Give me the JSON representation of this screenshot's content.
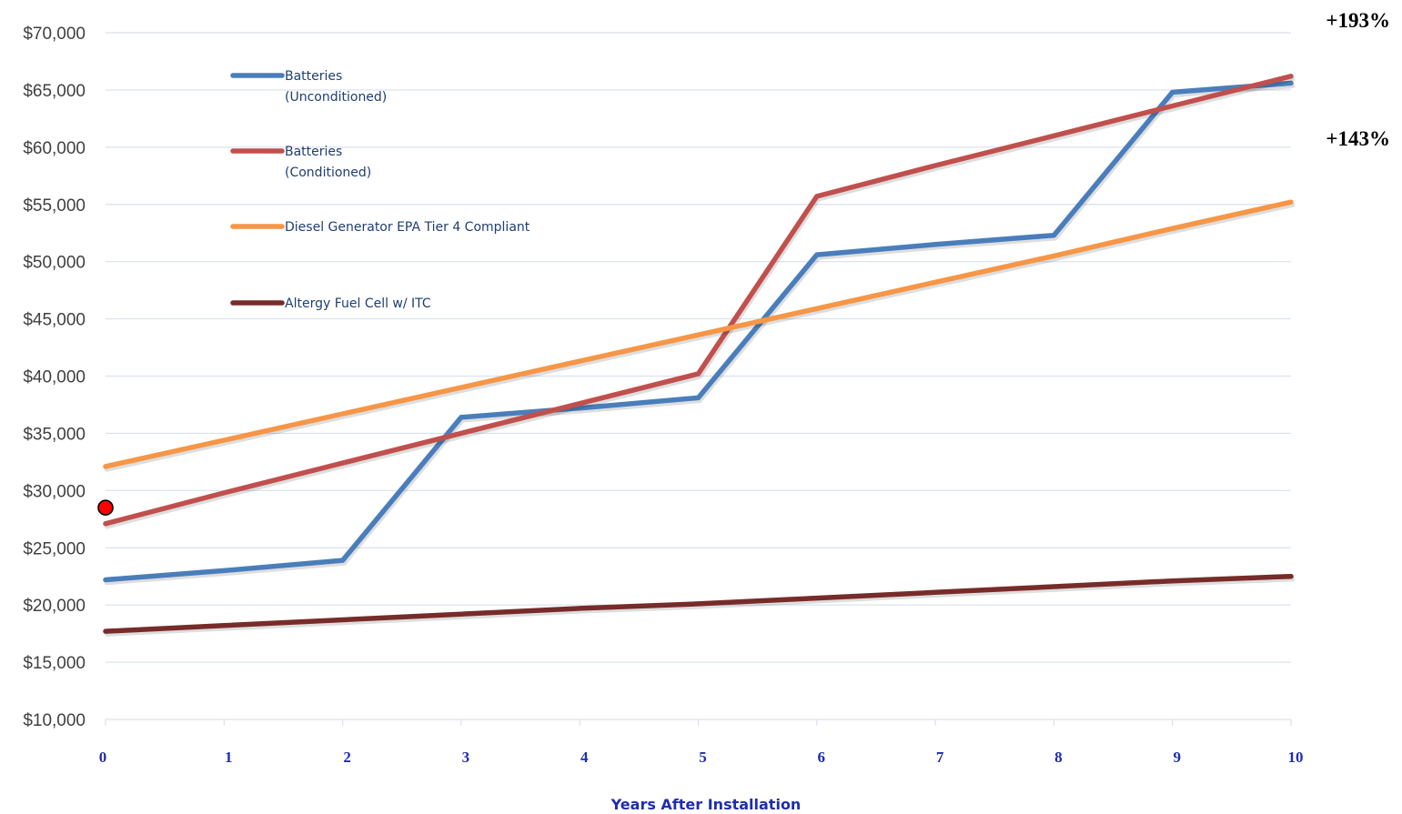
{
  "chart_data": {
    "type": "line",
    "x": [
      0,
      1,
      2,
      3,
      4,
      5,
      6,
      7,
      8,
      9,
      10
    ],
    "xlabel": "Years After Installation",
    "ylabel": "",
    "ylim": [
      10000,
      70000
    ],
    "yticks": [
      10000,
      15000,
      20000,
      25000,
      30000,
      35000,
      40000,
      45000,
      50000,
      55000,
      60000,
      65000,
      70000
    ],
    "ytick_labels": [
      "$10,000",
      "$15,000",
      "$20,000",
      "$25,000",
      "$30,000",
      "$35,000",
      "$40,000",
      "$45,000",
      "$50,000",
      "$55,000",
      "$60,000",
      "$65,000",
      "$70,000"
    ],
    "xtick_labels": [
      "0",
      "1",
      "2",
      "3",
      "4",
      "5",
      "6",
      "7",
      "8",
      "9",
      "10"
    ],
    "grid": true,
    "legend_position": "upper-left inside plot",
    "series": [
      {
        "name": "Batteries (Unconditioned)",
        "legend_lines": [
          "Batteries",
          "(Unconditioned)"
        ],
        "color": "#4a7ebb",
        "values": [
          22200,
          23000,
          23900,
          36400,
          37200,
          38100,
          50600,
          51500,
          52300,
          64800,
          65600
        ]
      },
      {
        "name": "Batteries (Conditioned)",
        "legend_lines": [
          "Batteries",
          "(Conditioned)"
        ],
        "color": "#c0504d",
        "values": [
          27100,
          29800,
          32400,
          35000,
          37600,
          40200,
          55700,
          58400,
          61000,
          63600,
          66200
        ]
      },
      {
        "name": "Diesel Generator EPA Tier 4 Compliant",
        "legend_lines": [
          "Diesel Generator EPA Tier 4 Compliant"
        ],
        "color": "#f79646",
        "values": [
          32100,
          34400,
          36700,
          39000,
          41300,
          43600,
          45900,
          48200,
          50500,
          52900,
          55200
        ]
      },
      {
        "name": "Altergy Fuel Cell w/ ITC",
        "legend_lines": [
          "Altergy Fuel Cell w/ ITC"
        ],
        "color": "#772c2a",
        "values": [
          17700,
          18200,
          18700,
          19200,
          19700,
          20100,
          20600,
          21100,
          21600,
          22100,
          22500
        ]
      }
    ],
    "annotations": [
      {
        "text": "+193%"
      },
      {
        "text": "+143%"
      }
    ],
    "marker": {
      "x": 0,
      "y": 28500,
      "color": "#ff0000"
    },
    "grid_color": "#d9e1ee"
  }
}
